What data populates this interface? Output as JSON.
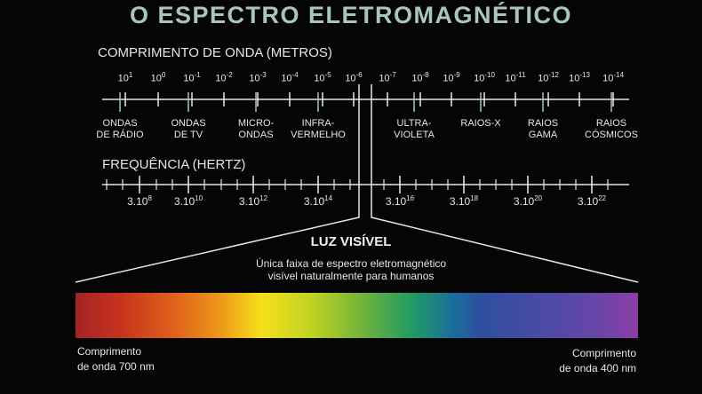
{
  "title": "O ESPECTRO ELETROMAGNÉTICO",
  "wavelength": {
    "title": "COMPRIMENTO DE ONDA (METROS)",
    "labels": [
      {
        "base": "10",
        "exp": "1"
      },
      {
        "base": "10",
        "exp": "0"
      },
      {
        "base": "10",
        "exp": "-1"
      },
      {
        "base": "10",
        "exp": "-2"
      },
      {
        "base": "10",
        "exp": "-3"
      },
      {
        "base": "10",
        "exp": "-4"
      },
      {
        "base": "10",
        "exp": "-5"
      },
      {
        "base": "10",
        "exp": "-6"
      },
      {
        "base": "10",
        "exp": "-7"
      },
      {
        "base": "10",
        "exp": "-8"
      },
      {
        "base": "10",
        "exp": "-9"
      },
      {
        "base": "10",
        "exp": "-10"
      },
      {
        "base": "10",
        "exp": "-11"
      },
      {
        "base": "10",
        "exp": "-12"
      },
      {
        "base": "10",
        "exp": "-13"
      },
      {
        "base": "10",
        "exp": "-14"
      }
    ],
    "bands": [
      {
        "line1": "ONDAS",
        "line2": "DE RÁDIO"
      },
      {
        "line1": "ONDAS",
        "line2": "DE TV"
      },
      {
        "line1": "MICRO-",
        "line2": "ONDAS"
      },
      {
        "line1": "INFRA-",
        "line2": "VERMELHO"
      },
      {
        "line1": "ULTRA-",
        "line2": "VIOLETA"
      },
      {
        "line1": "RAIOS-X",
        "line2": ""
      },
      {
        "line1": "RAIOS",
        "line2": "GAMA"
      },
      {
        "line1": "RAIOS",
        "line2": "CÓSMICOS"
      }
    ]
  },
  "frequency": {
    "title": "FREQUÊNCIA (HERTZ)",
    "labels": [
      {
        "base": "3.10",
        "exp": "8"
      },
      {
        "base": "3.10",
        "exp": "10"
      },
      {
        "base": "3.10",
        "exp": "12"
      },
      {
        "base": "3.10",
        "exp": "14"
      },
      {
        "base": "3.10",
        "exp": "16"
      },
      {
        "base": "3.10",
        "exp": "18"
      },
      {
        "base": "3.10",
        "exp": "20"
      },
      {
        "base": "3.10",
        "exp": "22"
      }
    ]
  },
  "visible": {
    "title": "LUZ VISÍVEL",
    "desc_line1": "Única faixa de espectro eletromagnético",
    "desc_line2": "visível naturalmente para humanos",
    "left_caption_line1": "Comprimento",
    "left_caption_line2": "de onda 700 nm",
    "right_caption_line1": "Comprimento",
    "right_caption_line2": "de onda 400 nm"
  },
  "colors": {
    "background": "#050505",
    "title": "#a9c7b9",
    "axis": "#e6e6e6",
    "tick_accent": "#9fd0a8"
  }
}
